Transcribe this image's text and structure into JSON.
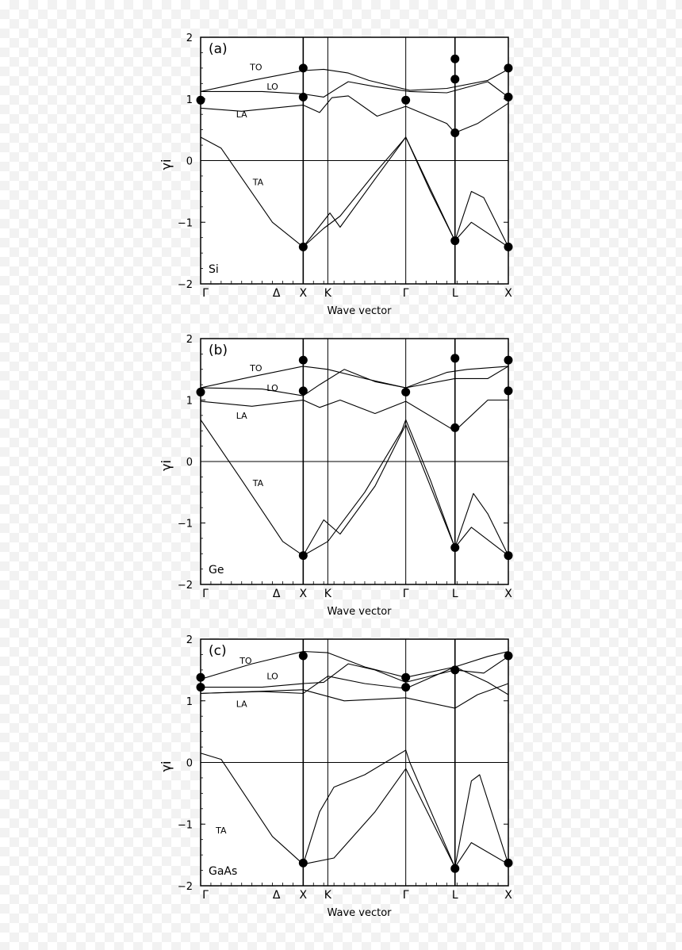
{
  "chart_data": [
    {
      "type": "line",
      "panel_label": "(a)",
      "material": "Si",
      "ylabel": "γi",
      "xlabel": "Wave vector",
      "x_ticks": [
        "Γ",
        "Δ",
        "X",
        "K",
        "Γ",
        "L",
        "X"
      ],
      "y_ticks": [
        "2",
        "1",
        "0",
        "−1",
        "−2"
      ],
      "ylim": [
        -2,
        2
      ],
      "branch_labels": [
        "TO",
        "LO",
        "LA",
        "TA"
      ],
      "series": [
        {
          "name": "TO",
          "values": [
            [
              0,
              1.12
            ],
            [
              0.25,
              1.3
            ],
            [
              0.5,
              1.46
            ],
            [
              0.6,
              1.48
            ],
            [
              0.72,
              1.42
            ],
            [
              0.82,
              1.3
            ],
            [
              1.02,
              1.14
            ],
            [
              1.2,
              1.17
            ],
            [
              1.4,
              1.3
            ],
            [
              1.5,
              1.48
            ]
          ]
        },
        {
          "name": "LO",
          "values": [
            [
              0,
              1.12
            ],
            [
              0.3,
              1.12
            ],
            [
              0.5,
              1.08
            ],
            [
              0.6,
              1.03
            ],
            [
              0.67,
              1.18
            ],
            [
              0.72,
              1.28
            ],
            [
              0.85,
              1.2
            ],
            [
              1.02,
              1.12
            ],
            [
              1.2,
              1.1
            ],
            [
              1.4,
              1.28
            ],
            [
              1.5,
              1.03
            ]
          ]
        },
        {
          "name": "LA",
          "values": [
            [
              0,
              0.85
            ],
            [
              0.2,
              0.8
            ],
            [
              0.5,
              0.9
            ],
            [
              0.58,
              0.78
            ],
            [
              0.64,
              1.02
            ],
            [
              0.72,
              1.05
            ],
            [
              0.86,
              0.72
            ],
            [
              1.0,
              0.88
            ],
            [
              1.2,
              0.6
            ],
            [
              1.24,
              0.45
            ],
            [
              1.35,
              0.6
            ],
            [
              1.5,
              0.93
            ]
          ]
        },
        {
          "name": "TA",
          "values": [
            [
              0,
              0.38
            ],
            [
              0.1,
              0.2
            ],
            [
              0.35,
              -1.0
            ],
            [
              0.5,
              -1.4
            ],
            [
              0.6,
              -1.1
            ],
            [
              0.68,
              -0.9
            ],
            [
              0.85,
              -0.2
            ],
            [
              0.98,
              0.3
            ],
            [
              1.0,
              0.38
            ],
            [
              1.12,
              -0.5
            ],
            [
              1.24,
              -1.3
            ],
            [
              1.32,
              -0.5
            ],
            [
              1.38,
              -0.6
            ],
            [
              1.5,
              -1.4
            ]
          ]
        },
        {
          "name": "TA2",
          "values": [
            [
              0.5,
              -1.4
            ],
            [
              0.63,
              -0.85
            ],
            [
              0.68,
              -1.08
            ],
            [
              0.85,
              -0.3
            ],
            [
              1.0,
              0.38
            ],
            [
              1.24,
              -1.3
            ],
            [
              1.32,
              -1.0
            ],
            [
              1.5,
              -1.4
            ]
          ]
        }
      ],
      "markers": [
        [
          0,
          0.98
        ],
        [
          0.5,
          1.5
        ],
        [
          0.5,
          1.03
        ],
        [
          0.5,
          -1.4
        ],
        [
          1.0,
          0.98
        ],
        [
          1.24,
          1.65
        ],
        [
          1.24,
          1.32
        ],
        [
          1.24,
          0.45
        ],
        [
          1.24,
          -1.3
        ],
        [
          1.5,
          1.5
        ],
        [
          1.5,
          1.03
        ],
        [
          1.5,
          -1.4
        ]
      ]
    },
    {
      "type": "line",
      "panel_label": "(b)",
      "material": "Ge",
      "ylabel": "γi",
      "xlabel": "Wave vector",
      "x_ticks": [
        "Γ",
        "Δ",
        "X",
        "K",
        "Γ",
        "L",
        "X"
      ],
      "y_ticks": [
        "2",
        "1",
        "0",
        "−1",
        "−2"
      ],
      "ylim": [
        -2,
        2
      ],
      "branch_labels": [
        "TO",
        "LO",
        "LA",
        "TA"
      ],
      "series": [
        {
          "name": "TO",
          "values": [
            [
              0,
              1.2
            ],
            [
              0.25,
              1.38
            ],
            [
              0.5,
              1.55
            ],
            [
              0.62,
              1.5
            ],
            [
              0.8,
              1.35
            ],
            [
              1.0,
              1.2
            ],
            [
              1.2,
              1.45
            ],
            [
              1.3,
              1.5
            ],
            [
              1.5,
              1.55
            ]
          ]
        },
        {
          "name": "LO",
          "values": [
            [
              0,
              1.2
            ],
            [
              0.3,
              1.18
            ],
            [
              0.5,
              1.07
            ],
            [
              0.58,
              1.25
            ],
            [
              0.7,
              1.5
            ],
            [
              0.85,
              1.3
            ],
            [
              1.0,
              1.2
            ],
            [
              1.24,
              1.35
            ],
            [
              1.4,
              1.35
            ],
            [
              1.5,
              1.55
            ]
          ]
        },
        {
          "name": "LA",
          "values": [
            [
              0,
              0.98
            ],
            [
              0.25,
              0.9
            ],
            [
              0.5,
              1.0
            ],
            [
              0.58,
              0.88
            ],
            [
              0.68,
              1.0
            ],
            [
              0.85,
              0.78
            ],
            [
              1.0,
              0.98
            ],
            [
              1.24,
              0.5
            ],
            [
              1.4,
              1.0
            ],
            [
              1.5,
              1.0
            ]
          ]
        },
        {
          "name": "TA",
          "values": [
            [
              0,
              0.68
            ],
            [
              0.2,
              -0.3
            ],
            [
              0.4,
              -1.3
            ],
            [
              0.5,
              -1.53
            ],
            [
              0.62,
              -1.3
            ],
            [
              0.8,
              -0.5
            ],
            [
              0.98,
              0.5
            ],
            [
              1.0,
              0.68
            ],
            [
              1.12,
              -0.3
            ],
            [
              1.24,
              -1.4
            ],
            [
              1.33,
              -0.52
            ],
            [
              1.4,
              -0.85
            ],
            [
              1.5,
              -1.53
            ]
          ]
        },
        {
          "name": "TA2",
          "values": [
            [
              0.5,
              -1.53
            ],
            [
              0.6,
              -0.95
            ],
            [
              0.68,
              -1.18
            ],
            [
              0.85,
              -0.4
            ],
            [
              1.0,
              0.6
            ],
            [
              1.24,
              -1.4
            ],
            [
              1.32,
              -1.07
            ],
            [
              1.5,
              -1.53
            ]
          ]
        }
      ],
      "markers": [
        [
          0,
          1.13
        ],
        [
          0.5,
          1.65
        ],
        [
          0.5,
          1.15
        ],
        [
          0.5,
          -1.53
        ],
        [
          1.0,
          1.13
        ],
        [
          1.24,
          1.68
        ],
        [
          1.24,
          0.55
        ],
        [
          1.24,
          -1.4
        ],
        [
          1.5,
          1.65
        ],
        [
          1.5,
          1.15
        ],
        [
          1.5,
          -1.53
        ]
      ]
    },
    {
      "type": "line",
      "panel_label": "(c)",
      "material": "GaAs",
      "ylabel": "γi",
      "xlabel": "Wave vector",
      "x_ticks": [
        "Γ",
        "Δ",
        "X",
        "K",
        "Γ",
        "L",
        "X"
      ],
      "y_ticks": [
        "2",
        "1",
        "0",
        "−1",
        "−2"
      ],
      "ylim": [
        -2,
        2
      ],
      "branch_labels": [
        "TO",
        "LO",
        "LA",
        "TA"
      ],
      "series": [
        {
          "name": "TO",
          "values": [
            [
              0,
              1.35
            ],
            [
              0.25,
              1.6
            ],
            [
              0.5,
              1.8
            ],
            [
              0.62,
              1.78
            ],
            [
              0.8,
              1.55
            ],
            [
              1.0,
              1.38
            ],
            [
              1.24,
              1.55
            ],
            [
              1.4,
              1.72
            ],
            [
              1.5,
              1.8
            ]
          ]
        },
        {
          "name": "LO",
          "values": [
            [
              0,
              1.22
            ],
            [
              0.3,
              1.22
            ],
            [
              0.5,
              1.28
            ],
            [
              0.6,
              1.3
            ],
            [
              0.72,
              1.6
            ],
            [
              0.85,
              1.5
            ],
            [
              1.0,
              1.3
            ],
            [
              1.24,
              1.5
            ],
            [
              1.38,
              1.45
            ],
            [
              1.5,
              1.72
            ]
          ]
        },
        {
          "name": "LA",
          "values": [
            [
              0,
              1.12
            ],
            [
              0.3,
              1.15
            ],
            [
              0.5,
              1.12
            ],
            [
              0.62,
              1.4
            ],
            [
              0.8,
              1.28
            ],
            [
              1.0,
              1.2
            ],
            [
              1.24,
              1.55
            ],
            [
              1.4,
              1.3
            ],
            [
              1.5,
              1.1
            ]
          ]
        },
        {
          "name": "LA2",
          "values": [
            [
              0,
              1.12
            ],
            [
              0.5,
              1.18
            ],
            [
              0.7,
              1.0
            ],
            [
              1.0,
              1.05
            ],
            [
              1.24,
              0.88
            ],
            [
              1.35,
              1.1
            ],
            [
              1.5,
              1.28
            ]
          ]
        },
        {
          "name": "TA",
          "values": [
            [
              0,
              0.15
            ],
            [
              0.1,
              0.05
            ],
            [
              0.35,
              -1.2
            ],
            [
              0.5,
              -1.65
            ],
            [
              0.58,
              -0.8
            ],
            [
              0.65,
              -0.4
            ],
            [
              0.8,
              -0.2
            ],
            [
              1.0,
              0.2
            ],
            [
              1.02,
              0.0
            ],
            [
              1.24,
              -1.7
            ],
            [
              1.32,
              -0.3
            ],
            [
              1.36,
              -0.2
            ],
            [
              1.5,
              -1.65
            ]
          ]
        },
        {
          "name": "TA2",
          "values": [
            [
              0.5,
              -1.65
            ],
            [
              0.65,
              -1.55
            ],
            [
              0.85,
              -0.8
            ],
            [
              1.0,
              -0.1
            ],
            [
              1.24,
              -1.7
            ],
            [
              1.32,
              -1.3
            ],
            [
              1.5,
              -1.65
            ]
          ]
        }
      ],
      "markers": [
        [
          0,
          1.38
        ],
        [
          0,
          1.22
        ],
        [
          0.5,
          1.73
        ],
        [
          0.5,
          -1.63
        ],
        [
          1.0,
          1.38
        ],
        [
          1.0,
          1.22
        ],
        [
          1.24,
          1.5
        ],
        [
          1.24,
          -1.72
        ],
        [
          1.5,
          1.73
        ],
        [
          1.5,
          -1.63
        ]
      ]
    }
  ]
}
